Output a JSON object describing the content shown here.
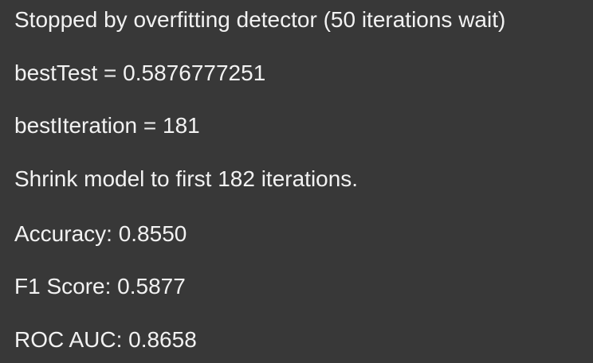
{
  "output": {
    "lines": [
      "Stopped by overfitting detector  (50 iterations wait)",
      "bestTest = 0.5876777251",
      "bestIteration = 181",
      "Shrink model to first 182 iterations.",
      "Accuracy: 0.8550",
      "F1 Score: 0.5877",
      "ROC AUC: 0.8658"
    ]
  },
  "colors": {
    "background": "#383838",
    "text": "#f2f2f2"
  }
}
